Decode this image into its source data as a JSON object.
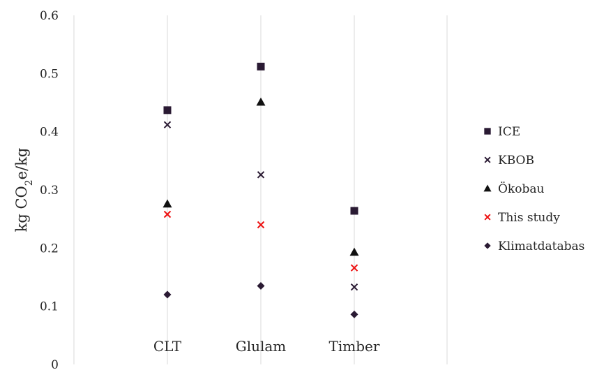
{
  "chart_data": {
    "type": "scatter",
    "ylabel": {
      "prefix": "kg CO",
      "sub": "2",
      "suffix": "e/kg"
    },
    "ylim": [
      0,
      0.6
    ],
    "yticks": [
      "0",
      "0.1",
      "0.2",
      "0.3",
      "0.4",
      "0.5",
      "0.6"
    ],
    "categories": [
      "CLT",
      "Glulam",
      "Timber"
    ],
    "grid": "vertical",
    "legend_position": "right",
    "series": [
      {
        "name": "ICE",
        "marker": "square",
        "color": "#2a1a33",
        "values": [
          0.437,
          0.512,
          0.264
        ]
      },
      {
        "name": "KBOB",
        "marker": "x",
        "color": "#2a1a33",
        "values": [
          0.412,
          0.326,
          0.133
        ]
      },
      {
        "name": "Ökobau",
        "marker": "triangle",
        "color": "#111111",
        "values": [
          0.276,
          0.451,
          0.193
        ]
      },
      {
        "name": "This study",
        "marker": "x",
        "color": "#ee1111",
        "values": [
          0.258,
          0.24,
          0.166
        ]
      },
      {
        "name": "Klimatdatabas",
        "marker": "diamond",
        "color": "#2a1a33",
        "values": [
          0.12,
          0.135,
          0.086
        ]
      }
    ]
  }
}
